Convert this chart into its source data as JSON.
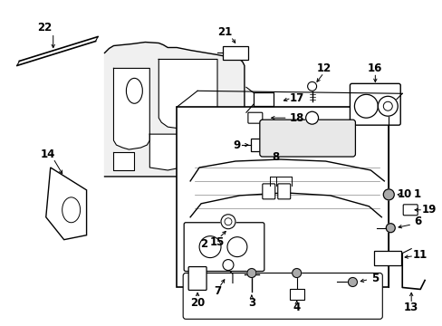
{
  "background": "#ffffff",
  "figsize": [
    4.89,
    3.6
  ],
  "dpi": 100,
  "line_color": "#000000",
  "label_fontsize": 8.5,
  "label_fontweight": "bold"
}
